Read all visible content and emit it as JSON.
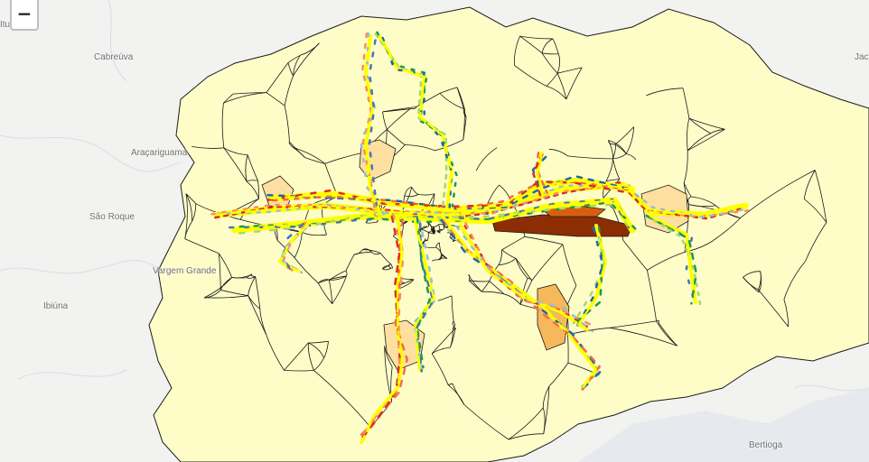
{
  "map": {
    "zoom_out_label": "−",
    "place_labels": [
      {
        "name": "Cabreúva",
        "key": "cabreuva"
      },
      {
        "name": "Araçariguama",
        "key": "aracariguama"
      },
      {
        "name": "São Roque",
        "key": "sao-roque"
      },
      {
        "name": "Vargem Grande",
        "key": "vargem-grande"
      },
      {
        "name": "Ibiúna",
        "key": "ibiuna"
      },
      {
        "name": "Bertioga",
        "key": "bertioga"
      },
      {
        "name": "Itu",
        "key": "itu"
      },
      {
        "name": "Jacareí",
        "key": "jacarei"
      }
    ],
    "colors": {
      "background": "#f2f2f0",
      "region_fill": "#fefdc8",
      "region_stroke": "#1a1a1a",
      "hot_region_light": "#fddfa0",
      "hot_region_mid": "#f6b85a",
      "hot_region_dark": "#8c2d04",
      "route_primary": "#ffff00",
      "route_palette": [
        "#d73027",
        "#fc8d59",
        "#91bfdb",
        "#4575b4",
        "#1a9850",
        "#a6d96a",
        "#2166ac",
        "#f46d43"
      ]
    }
  }
}
